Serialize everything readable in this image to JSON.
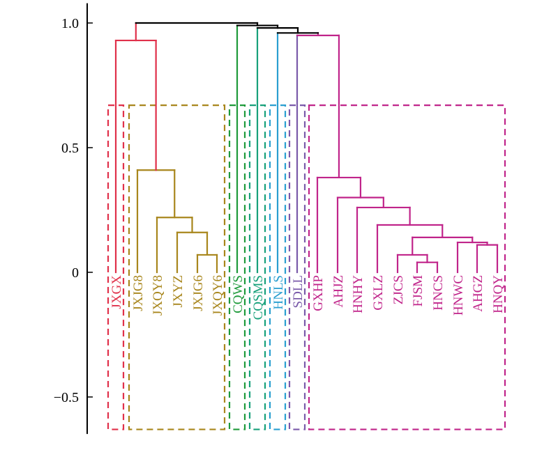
{
  "chart_data": {
    "type": "dendrogram",
    "title": "",
    "xlabel": "",
    "ylabel": "",
    "ylim": [
      -0.64,
      1.04
    ],
    "yticks": [
      {
        "value": 1.0,
        "label": "1.0"
      },
      {
        "value": 0.5,
        "label": "0.5"
      },
      {
        "value": 0.0,
        "label": "0"
      },
      {
        "value": -0.5,
        "label": "−0.5"
      }
    ],
    "grid": false,
    "legend": "none",
    "leaves": [
      {
        "label": "JXGX",
        "cluster": 0
      },
      {
        "label": "JXJG8",
        "cluster": 1
      },
      {
        "label": "JXQY8",
        "cluster": 1
      },
      {
        "label": "JXYZ",
        "cluster": 1
      },
      {
        "label": "JXJG6",
        "cluster": 1
      },
      {
        "label": "JXQY6",
        "cluster": 1
      },
      {
        "label": "CQWS",
        "cluster": 2
      },
      {
        "label": "CQSMS",
        "cluster": 3
      },
      {
        "label": "HNLS",
        "cluster": 4
      },
      {
        "label": "SDLL",
        "cluster": 5
      },
      {
        "label": "GXHP",
        "cluster": 6
      },
      {
        "label": "AHJZ",
        "cluster": 6
      },
      {
        "label": "HNHY",
        "cluster": 6
      },
      {
        "label": "GXLZ",
        "cluster": 6
      },
      {
        "label": "ZJCS",
        "cluster": 6
      },
      {
        "label": "FJSM",
        "cluster": 6
      },
      {
        "label": "HNCS",
        "cluster": 6
      },
      {
        "label": "HNWC",
        "cluster": 6
      },
      {
        "label": "AHGZ",
        "cluster": 6
      },
      {
        "label": "HNQY",
        "cluster": 6
      }
    ],
    "merges": [
      {
        "a": "JXJG6",
        "b": "JXQY6",
        "height": 0.07,
        "color": "#a8861c"
      },
      {
        "a": "JXYZ",
        "b": 0,
        "height": 0.16,
        "color": "#a8861c"
      },
      {
        "a": "JXQY8",
        "b": 1,
        "height": 0.22,
        "color": "#a8861c"
      },
      {
        "a": "JXJG8",
        "b": 2,
        "height": 0.41,
        "color": "#a8861c"
      },
      {
        "a": "JXGX",
        "b": 3,
        "height": 0.93,
        "color": "#e0304a"
      },
      {
        "a": "FJSM",
        "b": "HNCS",
        "height": 0.04,
        "color": "#c0248a"
      },
      {
        "a": "ZJCS",
        "b": 5,
        "height": 0.07,
        "color": "#c0248a"
      },
      {
        "a": "AHGZ",
        "b": "HNQY",
        "height": 0.11,
        "color": "#c0248a"
      },
      {
        "a": "HNWC",
        "b": 7,
        "height": 0.12,
        "color": "#c0248a"
      },
      {
        "a": 6,
        "b": 8,
        "height": 0.14,
        "color": "#c0248a"
      },
      {
        "a": "GXLZ",
        "b": 9,
        "height": 0.19,
        "color": "#c0248a"
      },
      {
        "a": "HNHY",
        "b": 10,
        "height": 0.26,
        "color": "#c0248a"
      },
      {
        "a": "AHJZ",
        "b": 11,
        "height": 0.3,
        "color": "#c0248a"
      },
      {
        "a": "GXHP",
        "b": 12,
        "height": 0.38,
        "color": "#c0248a"
      },
      {
        "a": "SDLL",
        "b": 13,
        "height": 0.95,
        "color": "#c0248a"
      },
      {
        "a": "HNLS",
        "b": 14,
        "height": 0.96,
        "color": "#000000"
      },
      {
        "a": "CQSMS",
        "b": 15,
        "height": 0.98,
        "color": "#000000"
      },
      {
        "a": "CQWS",
        "b": 16,
        "height": 0.99,
        "color": "#000000"
      },
      {
        "a": 4,
        "b": 17,
        "height": 1.0,
        "color": "#000000"
      }
    ],
    "leaf_link_colors": {
      "CQWS": "#1e9a3a",
      "CQSMS": "#17a07a",
      "HNLS": "#2a9fd0",
      "SDLL": "#7a5aaa"
    },
    "cut_height": 0.67,
    "clusters": [
      {
        "color": "#e0304a",
        "leaves": [
          "JXGX"
        ]
      },
      {
        "color": "#a8861c",
        "leaves": [
          "JXJG8",
          "JXQY8",
          "JXYZ",
          "JXJG6",
          "JXQY6"
        ]
      },
      {
        "color": "#1e9a3a",
        "leaves": [
          "CQWS"
        ]
      },
      {
        "color": "#17a07a",
        "leaves": [
          "CQSMS"
        ]
      },
      {
        "color": "#2a9fd0",
        "leaves": [
          "HNLS"
        ]
      },
      {
        "color": "#7a5aaa",
        "leaves": [
          "SDLL"
        ]
      },
      {
        "color": "#c0248a",
        "leaves": [
          "GXHP",
          "AHJZ",
          "HNHY",
          "GXLZ",
          "ZJCS",
          "FJSM",
          "HNCS",
          "HNWC",
          "AHGZ",
          "HNQY"
        ]
      }
    ]
  }
}
